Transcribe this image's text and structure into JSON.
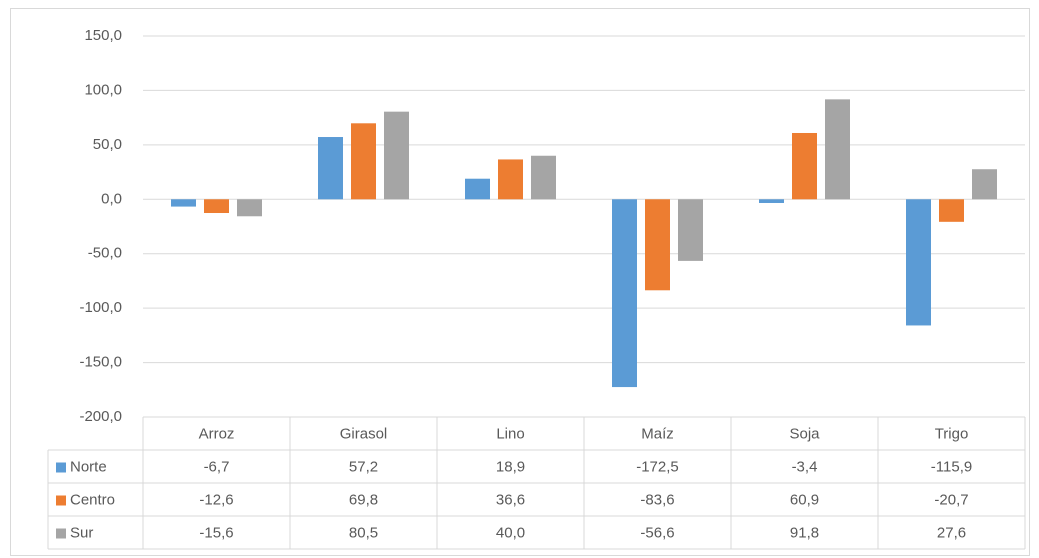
{
  "chart_data": {
    "type": "bar",
    "categories": [
      "Arroz",
      "Girasol",
      "Lino",
      "Maíz",
      "Soja",
      "Trigo"
    ],
    "series": [
      {
        "name": "Norte",
        "color": "#5b9bd5",
        "values": [
          -6.7,
          57.2,
          18.9,
          -172.5,
          -3.4,
          -115.9
        ],
        "value_labels": [
          "-6,7",
          "57,2",
          "18,9",
          "-172,5",
          "-3,4",
          "-115,9"
        ]
      },
      {
        "name": "Centro",
        "color": "#ed7d31",
        "values": [
          -12.6,
          69.8,
          36.6,
          -83.6,
          60.9,
          -20.7
        ],
        "value_labels": [
          "-12,6",
          "69,8",
          "36,6",
          "-83,6",
          "60,9",
          "-20,7"
        ]
      },
      {
        "name": "Sur",
        "color": "#a5a5a5",
        "values": [
          -15.6,
          80.5,
          40.0,
          -56.6,
          91.8,
          27.6
        ],
        "value_labels": [
          "-15,6",
          "80,5",
          "40,0",
          "-56,6",
          "91,8",
          "27,6"
        ]
      }
    ],
    "ylim": [
      -200,
      150
    ],
    "yticks": [
      {
        "value": -200,
        "label": "-200,0"
      },
      {
        "value": -150,
        "label": "-150,0"
      },
      {
        "value": -100,
        "label": "-100,0"
      },
      {
        "value": -50,
        "label": "-50,0"
      },
      {
        "value": 0,
        "label": "0,0"
      },
      {
        "value": 50,
        "label": "50,0"
      },
      {
        "value": 100,
        "label": "100,0"
      },
      {
        "value": 150,
        "label": "150,0"
      }
    ],
    "grid": true,
    "data_table": true
  }
}
